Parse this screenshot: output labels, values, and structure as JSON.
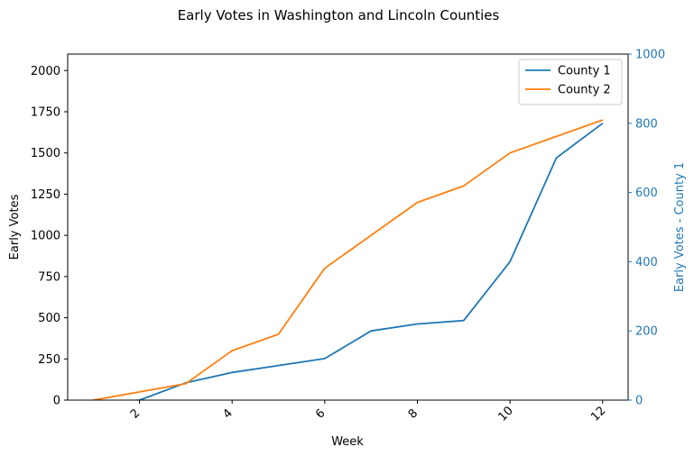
{
  "chart_data": {
    "type": "line",
    "title": "Early Votes in Washington and Lincoln Counties",
    "xlabel": "Week",
    "ylabel": "Early Votes",
    "y2label": "Early Votes - County 1",
    "x": [
      1,
      2,
      3,
      4,
      5,
      6,
      7,
      8,
      9,
      10,
      11,
      12
    ],
    "xlim": [
      0.45,
      12.55
    ],
    "xticks": [
      2,
      4,
      6,
      8,
      10,
      12
    ],
    "ylim": [
      0,
      2100
    ],
    "yticks": [
      0,
      250,
      500,
      750,
      1000,
      1250,
      1500,
      1750,
      2000
    ],
    "y2lim": [
      0,
      1000
    ],
    "y2ticks": [
      0,
      200,
      400,
      600,
      800,
      1000
    ],
    "grid": false,
    "legend_position": "top-right",
    "series": [
      {
        "name": "County 1",
        "axis": "right",
        "color": "#1f77b4",
        "values": [
          -10,
          0,
          50,
          80,
          100,
          120,
          200,
          220,
          230,
          400,
          700,
          800
        ]
      },
      {
        "name": "County 2",
        "axis": "left",
        "color": "#ff7f0e",
        "values": [
          0,
          50,
          100,
          300,
          400,
          800,
          1000,
          1200,
          1300,
          1500,
          1600,
          1700
        ]
      }
    ],
    "colors": {
      "axis": "#000000",
      "right_axis": "#1f77b4"
    }
  }
}
